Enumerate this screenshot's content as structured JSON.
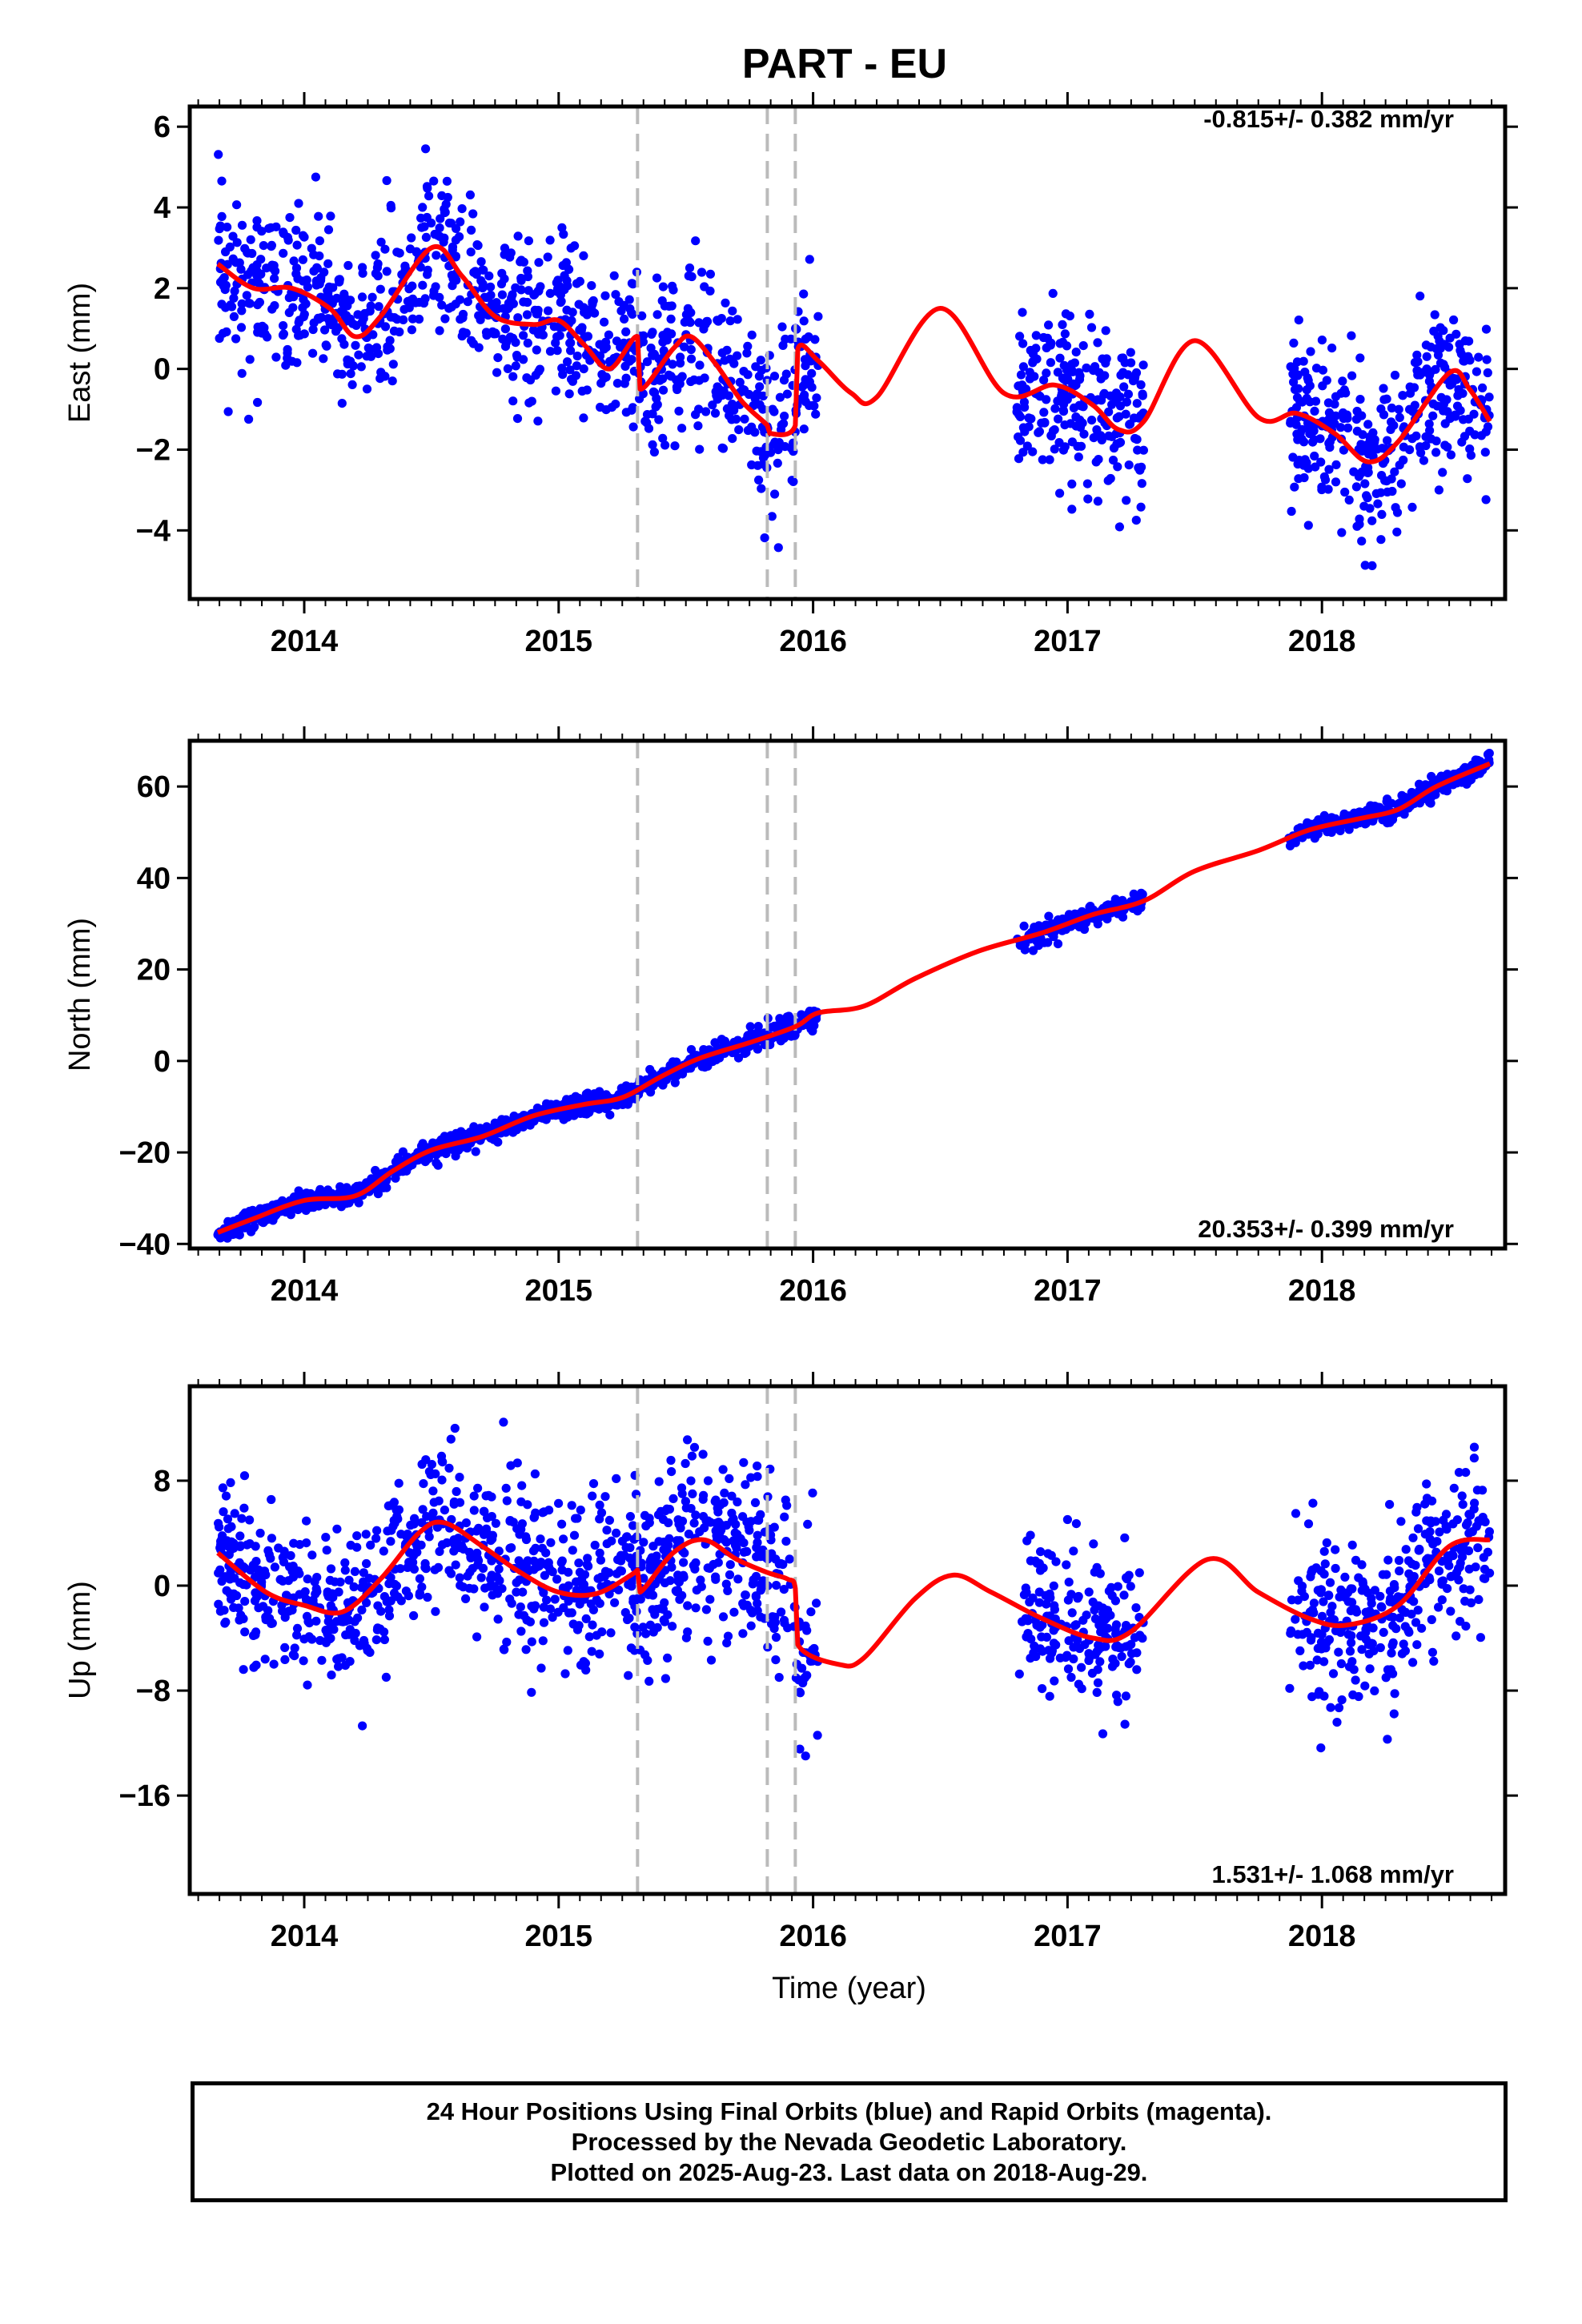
{
  "title": "PART - EU",
  "colors": {
    "points": "#0000ff",
    "fit": "#ff0000",
    "events": "#bbbbbb",
    "frame": "#000000"
  },
  "chart_data": [
    {
      "type": "scatter",
      "component": "East",
      "ylabel": "East (mm)",
      "xlabel": "",
      "xlim": [
        2013.55,
        2018.72
      ],
      "ylim": [
        -5.7,
        6.5
      ],
      "yticks": [
        "6",
        "4",
        "2",
        "0",
        "−2",
        "−4"
      ],
      "ytick_values": [
        6,
        4,
        2,
        0,
        -2,
        -4
      ],
      "xticks": [
        "2014",
        "2015",
        "2016",
        "2017",
        "2018"
      ],
      "rate_text": "-0.815+/- 0.382 mm/yr",
      "rate_position": "top-right",
      "event_lines": [
        2015.31,
        2015.82,
        2015.93
      ],
      "data_segments": [
        [
          2013.66,
          2016.02
        ],
        [
          2016.8,
          2017.3
        ],
        [
          2017.87,
          2018.66
        ]
      ],
      "fit_curve": [
        [
          2013.66,
          2.6
        ],
        [
          2013.8,
          2.0
        ],
        [
          2013.95,
          2.0
        ],
        [
          2014.1,
          1.5
        ],
        [
          2014.2,
          0.8
        ],
        [
          2014.3,
          1.3
        ],
        [
          2014.5,
          3.0
        ],
        [
          2014.62,
          2.3
        ],
        [
          2014.75,
          1.3
        ],
        [
          2014.9,
          1.1
        ],
        [
          2015.0,
          1.2
        ],
        [
          2015.1,
          0.6
        ],
        [
          2015.2,
          0.0
        ],
        [
          2015.31,
          0.8
        ],
        [
          2015.32,
          -0.5
        ],
        [
          2015.45,
          0.5
        ],
        [
          2015.52,
          0.8
        ],
        [
          2015.62,
          0.1
        ],
        [
          2015.72,
          -0.8
        ],
        [
          2015.82,
          -1.4
        ],
        [
          2015.83,
          -1.6
        ],
        [
          2015.93,
          -1.4
        ],
        [
          2015.94,
          0.5
        ],
        [
          2016.02,
          0.2
        ],
        [
          2016.15,
          -0.6
        ],
        [
          2016.25,
          -0.7
        ],
        [
          2016.5,
          1.5
        ],
        [
          2016.75,
          -0.6
        ],
        [
          2016.95,
          -0.4
        ],
        [
          2017.1,
          -0.9
        ],
        [
          2017.2,
          -1.5
        ],
        [
          2017.3,
          -1.3
        ],
        [
          2017.5,
          0.7
        ],
        [
          2017.75,
          -1.2
        ],
        [
          2017.9,
          -1.1
        ],
        [
          2018.05,
          -1.6
        ],
        [
          2018.18,
          -2.3
        ],
        [
          2018.3,
          -1.8
        ],
        [
          2018.5,
          -0.1
        ],
        [
          2018.58,
          -0.5
        ],
        [
          2018.66,
          -1.3
        ]
      ],
      "point_model": {
        "trend_mm_per_yr": -0.815,
        "scatter_mm": 1.0,
        "count": 1500
      }
    },
    {
      "type": "scatter",
      "component": "North",
      "ylabel": "North (mm)",
      "xlabel": "",
      "xlim": [
        2013.55,
        2018.72
      ],
      "ylim": [
        -41,
        70
      ],
      "yticks": [
        "60",
        "40",
        "20",
        "0",
        "−20",
        "−40"
      ],
      "ytick_values": [
        60,
        40,
        20,
        0,
        -20,
        -40
      ],
      "xticks": [
        "2014",
        "2015",
        "2016",
        "2017",
        "2018"
      ],
      "rate_text": "20.353+/- 0.399 mm/yr",
      "rate_position": "bottom-right",
      "event_lines": [
        2015.31,
        2015.82,
        2015.93
      ],
      "data_segments": [
        [
          2013.66,
          2016.02
        ],
        [
          2016.8,
          2017.3
        ],
        [
          2017.87,
          2018.66
        ]
      ],
      "fit_curve": [
        [
          2013.66,
          -37.5
        ],
        [
          2013.8,
          -34.5
        ],
        [
          2014.0,
          -30.5
        ],
        [
          2014.2,
          -29.5
        ],
        [
          2014.35,
          -24.0
        ],
        [
          2014.5,
          -19.5
        ],
        [
          2014.7,
          -16.5
        ],
        [
          2014.9,
          -12.0
        ],
        [
          2015.1,
          -9.5
        ],
        [
          2015.25,
          -8.0
        ],
        [
          2015.4,
          -3.5
        ],
        [
          2015.55,
          0.5
        ],
        [
          2015.75,
          4.0
        ],
        [
          2015.93,
          7.5
        ],
        [
          2016.02,
          10.5
        ],
        [
          2016.2,
          12.0
        ],
        [
          2016.4,
          18.0
        ],
        [
          2016.65,
          24.0
        ],
        [
          2016.9,
          28.0
        ],
        [
          2017.1,
          32.0
        ],
        [
          2017.3,
          35.0
        ],
        [
          2017.5,
          41.5
        ],
        [
          2017.75,
          46.0
        ],
        [
          2017.95,
          50.5
        ],
        [
          2018.15,
          53.0
        ],
        [
          2018.3,
          55.0
        ],
        [
          2018.45,
          60.0
        ],
        [
          2018.66,
          65.0
        ]
      ],
      "point_model": {
        "trend_mm_per_yr": 20.353,
        "scatter_mm": 1.1,
        "count": 1500
      }
    },
    {
      "type": "scatter",
      "component": "Up",
      "ylabel": "Up (mm)",
      "xlabel": "Time (year)",
      "xlim": [
        2013.55,
        2018.72
      ],
      "ylim": [
        -23.5,
        15.2
      ],
      "yticks": [
        "8",
        "0",
        "−8",
        "−16"
      ],
      "ytick_values": [
        8,
        0,
        -8,
        -16
      ],
      "xticks": [
        "2014",
        "2015",
        "2016",
        "2017",
        "2018"
      ],
      "rate_text": "1.531+/- 1.068 mm/yr",
      "rate_position": "bottom-right",
      "event_lines": [
        2015.31,
        2015.82,
        2015.93
      ],
      "data_segments": [
        [
          2013.66,
          2016.02
        ],
        [
          2016.8,
          2017.3
        ],
        [
          2017.87,
          2018.66
        ]
      ],
      "fit_curve": [
        [
          2013.66,
          2.5
        ],
        [
          2013.85,
          -0.5
        ],
        [
          2014.0,
          -1.5
        ],
        [
          2014.15,
          -2.0
        ],
        [
          2014.3,
          0.5
        ],
        [
          2014.45,
          4.0
        ],
        [
          2014.55,
          4.8
        ],
        [
          2014.7,
          3.0
        ],
        [
          2014.85,
          1.0
        ],
        [
          2015.0,
          -0.5
        ],
        [
          2015.15,
          -0.6
        ],
        [
          2015.3,
          1.0
        ],
        [
          2015.31,
          1.2
        ],
        [
          2015.32,
          -0.5
        ],
        [
          2015.45,
          2.5
        ],
        [
          2015.57,
          3.5
        ],
        [
          2015.7,
          2.0
        ],
        [
          2015.82,
          1.0
        ],
        [
          2015.9,
          0.5
        ],
        [
          2015.93,
          -0.2
        ],
        [
          2015.94,
          -4.5
        ],
        [
          2016.1,
          -6.0
        ],
        [
          2016.2,
          -5.5
        ],
        [
          2016.4,
          -1.0
        ],
        [
          2016.55,
          0.8
        ],
        [
          2016.7,
          -0.5
        ],
        [
          2016.9,
          -2.5
        ],
        [
          2017.1,
          -4.0
        ],
        [
          2017.25,
          -3.5
        ],
        [
          2017.55,
          2.0
        ],
        [
          2017.75,
          -0.5
        ],
        [
          2017.95,
          -2.5
        ],
        [
          2018.1,
          -3.0
        ],
        [
          2018.3,
          -1.5
        ],
        [
          2018.5,
          3.0
        ],
        [
          2018.66,
          3.5
        ]
      ],
      "point_model": {
        "trend_mm_per_yr": 1.531,
        "scatter_mm": 3.2,
        "count": 1500
      }
    }
  ],
  "footer": {
    "line1": "24 Hour Positions Using Final Orbits (blue) and Rapid Orbits (magenta).",
    "line2": "Processed by the Nevada Geodetic Laboratory.",
    "line3": "Plotted on 2025-Aug-23. Last data on 2018-Aug-29."
  }
}
